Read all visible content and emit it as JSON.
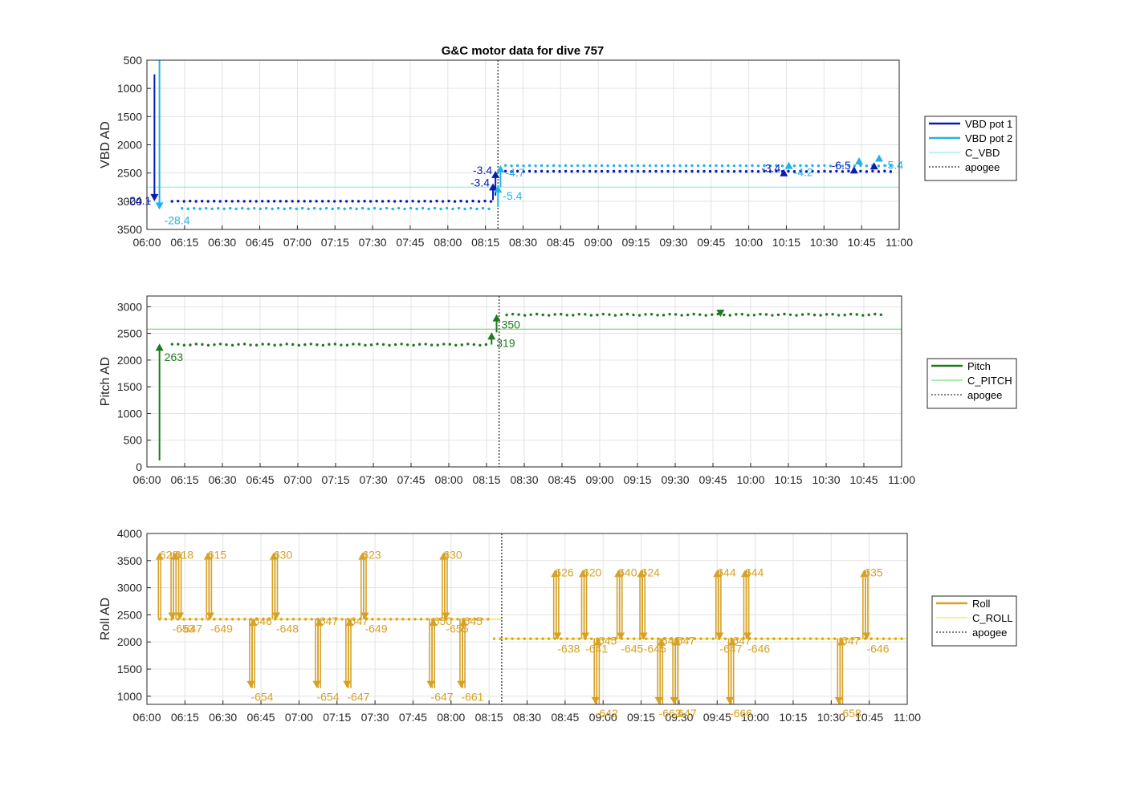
{
  "figure": {
    "title": "G&C motor data for dive 757"
  },
  "time_ticks": [
    "06:00",
    "06:15",
    "06:30",
    "06:45",
    "07:00",
    "07:15",
    "07:30",
    "07:45",
    "08:00",
    "08:15",
    "08:30",
    "08:45",
    "09:00",
    "09:15",
    "09:30",
    "09:45",
    "10:00",
    "10:15",
    "10:30",
    "10:45",
    "11:00"
  ],
  "chart_data": [
    {
      "id": "vbd",
      "type": "line",
      "title": "G&C motor data for dive 757",
      "ylabel": "VBD AD",
      "xlabel": "",
      "x_unit": "minutes after 06:00",
      "xlim": [
        0,
        300
      ],
      "ylim": [
        500,
        3500
      ],
      "y_reversed": true,
      "yticks": [
        500,
        1000,
        1500,
        2000,
        2500,
        3000,
        3500
      ],
      "grid": true,
      "legend_position": "outside-right",
      "legend": [
        "VBD pot 1",
        "VBD pot 2",
        "C_VBD",
        "apogee"
      ],
      "colors": {
        "pot1": "#0a1bb5",
        "pot2": "#1fb3ea",
        "cvbd": "#7ee8e0",
        "apogee": "#555555"
      },
      "reference": {
        "C_VBD": 2750
      },
      "apogee": 140,
      "series": [
        {
          "name": "VBD pot 1",
          "x_range": [
            10,
            298
          ],
          "y_segments": [
            [
              10,
              138,
              3000
            ],
            [
              143,
              298,
              2470
            ]
          ]
        },
        {
          "name": "VBD pot 2",
          "x_range": [
            14,
            298
          ],
          "y_segments": [
            [
              14,
              138,
              3130
            ],
            [
              143,
              298,
              2370
            ]
          ]
        }
      ],
      "moves": [
        {
          "series": "pot1",
          "x": 3,
          "from": 750,
          "to": 3000,
          "label": "-24.1",
          "label_side": "left"
        },
        {
          "series": "pot2",
          "x": 5,
          "from": 500,
          "to": 3150,
          "label": "-28.4",
          "label_side": "right-below"
        },
        {
          "series": "pot1",
          "x": 138,
          "from": 2980,
          "to": 2680,
          "label": "-3.4",
          "label_side": "left"
        },
        {
          "series": "pot1",
          "x": 139,
          "from": 2900,
          "to": 2460,
          "label": "-3.4",
          "label_side": "left"
        },
        {
          "series": "pot2",
          "x": 140,
          "from": 3100,
          "to": 2720,
          "label": "-5.4",
          "label_side": "right-below"
        },
        {
          "series": "pot2",
          "x": 141,
          "from": 2750,
          "to": 2360,
          "label": "-4.7",
          "label_side": "right"
        },
        {
          "series": "pot1",
          "x": 254,
          "from": 2480,
          "to": 2430,
          "label": "-3.4",
          "label_side": "left"
        },
        {
          "series": "pot2",
          "x": 256,
          "from": 2400,
          "to": 2300,
          "label": "-4.2",
          "label_side": "right-below"
        },
        {
          "series": "pot1",
          "x": 282,
          "from": 2420,
          "to": 2380,
          "label": "-6.5",
          "label_side": "left"
        },
        {
          "series": "pot2",
          "x": 284,
          "from": 2300,
          "to": 2220,
          "label": "",
          "label_side": "right"
        },
        {
          "series": "pot1",
          "x": 290,
          "from": 2360,
          "to": 2310,
          "label": "",
          "label_side": "left"
        },
        {
          "series": "pot2",
          "x": 292,
          "from": 2230,
          "to": 2170,
          "label": "-5.4",
          "label_side": "right-below"
        }
      ]
    },
    {
      "id": "pitch",
      "type": "line",
      "title": "",
      "ylabel": "Pitch AD",
      "xlabel": "",
      "x_unit": "minutes after 06:00",
      "xlim": [
        0,
        300
      ],
      "ylim": [
        0,
        3200
      ],
      "yticks": [
        0,
        500,
        1000,
        1500,
        2000,
        2500,
        3000
      ],
      "grid": true,
      "legend_position": "outside-right",
      "legend": [
        "Pitch",
        "C_PITCH",
        "apogee"
      ],
      "colors": {
        "pitch": "#1f7a1f",
        "cpitch": "#59d659",
        "apogee": "#555555"
      },
      "reference": {
        "C_PITCH": 2580
      },
      "apogee": 140,
      "series": [
        {
          "name": "Pitch",
          "y_segments": [
            [
              10,
              136,
              2290
            ],
            [
              143,
              294,
              2850
            ]
          ]
        }
      ],
      "moves": [
        {
          "x": 5,
          "from": 120,
          "to": 2310,
          "label": "263"
        },
        {
          "x": 137,
          "from": 2290,
          "to": 2520,
          "label": "319"
        },
        {
          "x": 139,
          "from": 2520,
          "to": 2860,
          "label": "350"
        },
        {
          "x": 228,
          "from": 2870,
          "to": 2810,
          "label": ""
        }
      ]
    },
    {
      "id": "roll",
      "type": "line",
      "title": "",
      "ylabel": "Roll AD",
      "xlabel": "",
      "x_unit": "minutes after 06:00",
      "xlim": [
        0,
        300
      ],
      "ylim": [
        850,
        4000
      ],
      "yticks": [
        1000,
        1500,
        2000,
        2500,
        3000,
        3500,
        4000
      ],
      "grid": true,
      "legend_position": "outside-right",
      "legend": [
        "Roll",
        "C_ROLL",
        "apogee"
      ],
      "colors": {
        "roll": "#d6a125",
        "croll": "#f5e87a",
        "apogee": "#555555"
      },
      "reference": {
        "C_ROLL_before_apogee": 2420,
        "C_ROLL_after_apogee": 2060
      },
      "apogee": 140,
      "series": [
        {
          "name": "Roll",
          "y_segments": [
            [
              5,
              137,
              2420
            ],
            [
              137,
              300,
              2060
            ]
          ]
        }
      ],
      "moves": [
        {
          "x": 5,
          "from": 2430,
          "to": 3650,
          "label": "628"
        },
        {
          "x": 10,
          "from": 3650,
          "to": 2410,
          "label": "-653"
        },
        {
          "x": 11,
          "from": 2430,
          "to": 3650,
          "label": "618"
        },
        {
          "x": 13,
          "from": 3650,
          "to": 2410,
          "label": "-647"
        },
        {
          "x": 24,
          "from": 2430,
          "to": 3650,
          "label": "615"
        },
        {
          "x": 25,
          "from": 3650,
          "to": 2410,
          "label": "-649"
        },
        {
          "x": 41,
          "from": 2430,
          "to": 1150,
          "label": "-654"
        },
        {
          "x": 42,
          "from": 1150,
          "to": 2430,
          "label": "646"
        },
        {
          "x": 50,
          "from": 2430,
          "to": 3650,
          "label": "630"
        },
        {
          "x": 51,
          "from": 3650,
          "to": 2410,
          "label": "-648"
        },
        {
          "x": 67,
          "from": 2430,
          "to": 1150,
          "label": "-654"
        },
        {
          "x": 68,
          "from": 1150,
          "to": 2430,
          "label": "647"
        },
        {
          "x": 79,
          "from": 2430,
          "to": 1150,
          "label": "-647"
        },
        {
          "x": 80,
          "from": 1150,
          "to": 2430,
          "label": "647"
        },
        {
          "x": 85,
          "from": 2430,
          "to": 3650,
          "label": "623"
        },
        {
          "x": 86,
          "from": 3650,
          "to": 2410,
          "label": "-649"
        },
        {
          "x": 112,
          "from": 2430,
          "to": 1150,
          "label": "-647"
        },
        {
          "x": 113,
          "from": 1150,
          "to": 2430,
          "label": "650"
        },
        {
          "x": 117,
          "from": 2430,
          "to": 3650,
          "label": "630"
        },
        {
          "x": 118,
          "from": 3650,
          "to": 2410,
          "label": "-655"
        },
        {
          "x": 124,
          "from": 2430,
          "to": 1150,
          "label": "-661"
        },
        {
          "x": 125,
          "from": 1150,
          "to": 2430,
          "label": "645"
        },
        {
          "x": 161,
          "from": 2060,
          "to": 3330,
          "label": "626"
        },
        {
          "x": 162,
          "from": 3330,
          "to": 2040,
          "label": "-638"
        },
        {
          "x": 172,
          "from": 2060,
          "to": 3330,
          "label": "620"
        },
        {
          "x": 173,
          "from": 3330,
          "to": 2040,
          "label": "-641"
        },
        {
          "x": 177,
          "from": 2060,
          "to": 850,
          "label": "-642"
        },
        {
          "x": 178,
          "from": 850,
          "to": 2070,
          "label": "645"
        },
        {
          "x": 186,
          "from": 2060,
          "to": 3330,
          "label": "640"
        },
        {
          "x": 187,
          "from": 3330,
          "to": 2040,
          "label": "-645"
        },
        {
          "x": 195,
          "from": 2060,
          "to": 3330,
          "label": "624"
        },
        {
          "x": 196,
          "from": 3330,
          "to": 2040,
          "label": "-645"
        },
        {
          "x": 202,
          "from": 2060,
          "to": 850,
          "label": "-663"
        },
        {
          "x": 203,
          "from": 850,
          "to": 2070,
          "label": "646"
        },
        {
          "x": 208,
          "from": 2060,
          "to": 850,
          "label": "-647"
        },
        {
          "x": 209,
          "from": 850,
          "to": 2070,
          "label": "647"
        },
        {
          "x": 225,
          "from": 2060,
          "to": 3330,
          "label": "644"
        },
        {
          "x": 226,
          "from": 3330,
          "to": 2040,
          "label": "-647"
        },
        {
          "x": 230,
          "from": 2060,
          "to": 850,
          "label": "-666"
        },
        {
          "x": 231,
          "from": 850,
          "to": 2070,
          "label": "647"
        },
        {
          "x": 236,
          "from": 2060,
          "to": 3330,
          "label": "644"
        },
        {
          "x": 237,
          "from": 3330,
          "to": 2040,
          "label": "-646"
        },
        {
          "x": 273,
          "from": 2060,
          "to": 850,
          "label": "-658"
        },
        {
          "x": 274,
          "from": 850,
          "to": 2070,
          "label": "647"
        },
        {
          "x": 283,
          "from": 2060,
          "to": 3330,
          "label": "635"
        },
        {
          "x": 284,
          "from": 3330,
          "to": 2040,
          "label": "-646"
        }
      ]
    }
  ]
}
